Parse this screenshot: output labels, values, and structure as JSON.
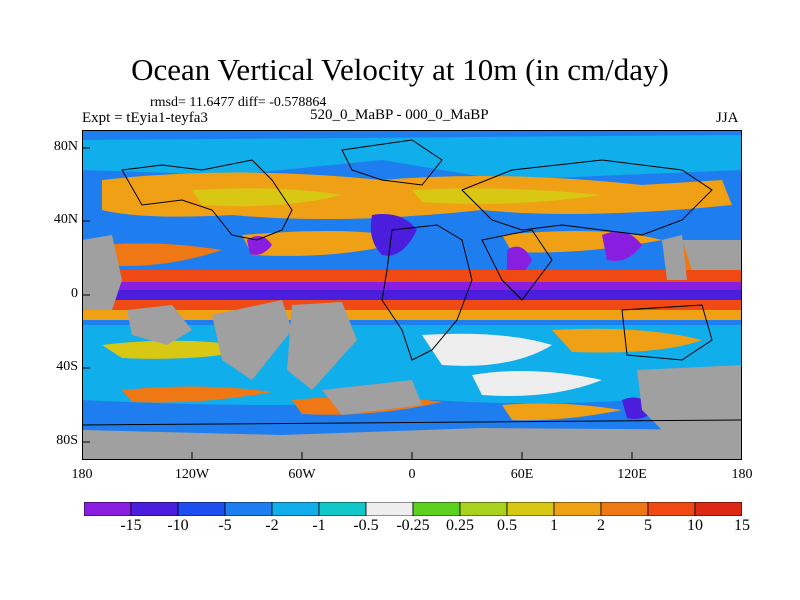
{
  "title": "Ocean Vertical Velocity at 10m (in cm/day)",
  "stats": "rmsd= 11.6477  diff= -0.578864",
  "experiment": "Expt = tEyia1-teyfa3",
  "comparison": "520_0_MaBP - 000_0_MaBP",
  "season": "JJA",
  "map": {
    "lon_range": [
      -180,
      180
    ],
    "lat_range": [
      -90,
      90
    ],
    "x_ticks": [
      "180",
      "120W",
      "60W",
      "0",
      "60E",
      "120E",
      "180"
    ],
    "y_ticks": [
      "80N",
      "40N",
      "0",
      "40S",
      "80S"
    ],
    "land_color": "#a0a0a0"
  },
  "colorbar": {
    "colors": [
      "#8a1ee0",
      "#4a1edc",
      "#1e4ef0",
      "#1e7ef0",
      "#10aeea",
      "#10c8c8",
      "#eeeeee",
      "#5ad21e",
      "#a8d21e",
      "#d8c814",
      "#f0a014",
      "#f07814",
      "#f04a14",
      "#dc2814"
    ],
    "labels": [
      "-15",
      "-10",
      "-5",
      "-2",
      "-1",
      "-0.5",
      "-0.25",
      "0.25",
      "0.5",
      "1",
      "2",
      "5",
      "10",
      "15"
    ]
  }
}
